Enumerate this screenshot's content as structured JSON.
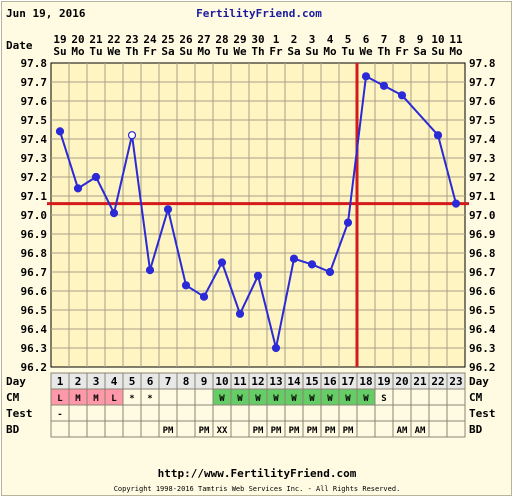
{
  "header": {
    "date": "Jun 19, 2016",
    "site": "FertilityFriend.com",
    "date_label": "Date"
  },
  "footer": {
    "url": "http://www.FertilityFriend.com",
    "copyright": "Copyright 1998-2016 Tamtris Web Services Inc. - All Rights Reserved."
  },
  "chart_data": {
    "type": "line",
    "title": "",
    "dates": [
      "19",
      "20",
      "21",
      "22",
      "23",
      "24",
      "25",
      "26",
      "27",
      "28",
      "29",
      "30",
      "1",
      "2",
      "3",
      "4",
      "5",
      "6",
      "7",
      "8",
      "9",
      "10",
      "11"
    ],
    "weekdays": [
      "Su",
      "Mo",
      "Tu",
      "We",
      "Th",
      "Fr",
      "Sa",
      "Su",
      "Mo",
      "Tu",
      "We",
      "Th",
      "Fr",
      "Sa",
      "Su",
      "Mo",
      "Tu",
      "We",
      "Th",
      "Fr",
      "Sa",
      "Su",
      "Mo"
    ],
    "days": [
      "1",
      "2",
      "3",
      "4",
      "5",
      "6",
      "7",
      "8",
      "9",
      "10",
      "11",
      "12",
      "13",
      "14",
      "15",
      "16",
      "17",
      "18",
      "19",
      "20",
      "21",
      "22",
      "23"
    ],
    "temperatures": [
      97.44,
      97.14,
      97.2,
      97.01,
      97.42,
      96.71,
      97.03,
      96.63,
      96.57,
      96.75,
      96.48,
      96.68,
      96.3,
      96.77,
      96.74,
      96.7,
      96.96,
      97.73,
      97.68,
      97.63,
      null,
      97.42,
      97.06
    ],
    "open_markers": [
      4
    ],
    "dashed_segments": [
      [
        20,
        22
      ]
    ],
    "coverline": 97.06,
    "ovulation_day": 17,
    "ylim": [
      96.2,
      97.8
    ],
    "yticks": [
      "96.2",
      "96.3",
      "96.4",
      "96.5",
      "96.6",
      "96.7",
      "96.8",
      "96.9",
      "97.0",
      "97.1",
      "97.2",
      "97.3",
      "97.4",
      "97.5",
      "97.6",
      "97.7",
      "97.8"
    ],
    "grid": true,
    "colors": {
      "line": "#2a2ad6",
      "coverline": "#d41a1a",
      "grid": "#a89f8a",
      "plot_bg": "#fff5c2",
      "menses": "#ff99aa",
      "cm": "#66cc66",
      "row_bg": "#fffbe3"
    },
    "rows": [
      {
        "label": "Day",
        "key": "day"
      },
      {
        "label": "CM",
        "cells": [
          "L",
          "M",
          "M",
          "L",
          "*",
          "*",
          "",
          "",
          "",
          "W",
          "W",
          "W",
          "W",
          "W",
          "W",
          "W",
          "W",
          "W",
          "S",
          "",
          "",
          "",
          ""
        ],
        "highlight": [
          "menses",
          "menses",
          "menses",
          "menses",
          "",
          "",
          "",
          "",
          "",
          "cm",
          "cm",
          "cm",
          "cm",
          "cm",
          "cm",
          "cm",
          "cm",
          "cm",
          "",
          "",
          "",
          "",
          ""
        ]
      },
      {
        "label": "Test",
        "cells": [
          "-",
          "",
          "",
          "",
          "",
          "",
          "",
          "",
          "",
          "",
          "",
          "",
          "",
          "",
          "",
          "",
          "",
          "",
          "",
          "",
          "",
          "",
          ""
        ]
      },
      {
        "label": "BD",
        "cells": [
          "",
          "",
          "",
          "",
          "",
          "",
          "PM",
          "",
          "PM",
          "XX",
          "",
          "PM",
          "PM",
          "PM",
          "PM",
          "PM",
          "PM",
          "",
          "",
          "AM",
          "AM",
          "",
          ""
        ]
      }
    ]
  }
}
